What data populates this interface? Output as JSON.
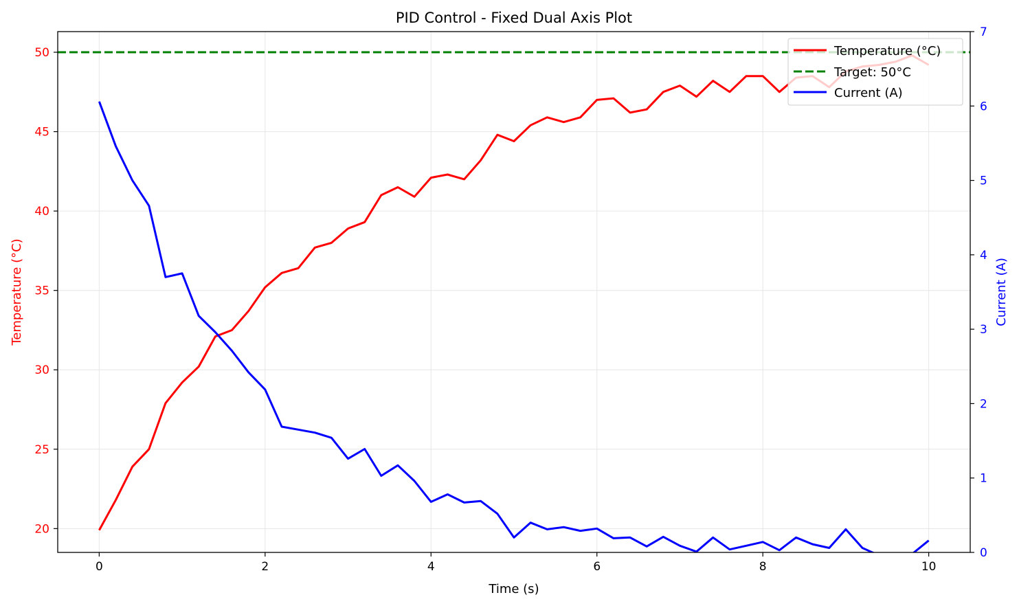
{
  "chart_data": {
    "type": "line",
    "title": "PID Control - Fixed Dual Axis Plot",
    "xlabel": "Time (s)",
    "ylabel": "Temperature (°C)",
    "y2label": "Current (A)",
    "xlim": [
      -0.5,
      10.5
    ],
    "ylim": [
      18.5,
      51.3
    ],
    "y2lim": [
      0,
      7
    ],
    "xticks": [
      0,
      2,
      4,
      6,
      8,
      10
    ],
    "yticks": [
      20,
      25,
      30,
      35,
      40,
      45,
      50
    ],
    "y2ticks": [
      0,
      1,
      2,
      3,
      4,
      5,
      6,
      7
    ],
    "grid": true,
    "legend_position": "upper right",
    "colors": {
      "temperature": "#ff0000",
      "target": "#008000",
      "current": "#0000ff",
      "axis": "#000000",
      "grid": "#e6e6e6"
    },
    "x": [
      0,
      0.2,
      0.4,
      0.6,
      0.8,
      1.0,
      1.2,
      1.4,
      1.6,
      1.8,
      2.0,
      2.2,
      2.4,
      2.6,
      2.8,
      3.0,
      3.2,
      3.4,
      3.6,
      3.8,
      4.0,
      4.2,
      4.4,
      4.6,
      4.8,
      5.0,
      5.2,
      5.4,
      5.6,
      5.8,
      6.0,
      6.2,
      6.4,
      6.6,
      6.8,
      7.0,
      7.2,
      7.4,
      7.6,
      7.8,
      8.0,
      8.2,
      8.4,
      8.6,
      8.8,
      9.0,
      9.2,
      9.4,
      9.6,
      9.8,
      10.0
    ],
    "series": [
      {
        "name": "Temperature (°C)",
        "axis": "left",
        "style": "solid",
        "values": [
          19.9,
          21.8,
          23.9,
          25.0,
          27.9,
          29.2,
          30.2,
          32.1,
          32.5,
          33.7,
          35.2,
          36.1,
          36.4,
          37.7,
          38.0,
          38.9,
          39.3,
          41.0,
          41.5,
          40.9,
          42.1,
          42.3,
          42.0,
          43.2,
          44.8,
          44.4,
          45.4,
          45.9,
          45.6,
          45.9,
          47.0,
          47.1,
          46.2,
          46.4,
          47.5,
          47.9,
          47.2,
          48.2,
          47.5,
          48.5,
          48.5,
          47.5,
          48.4,
          48.5,
          47.8,
          48.8,
          49.1,
          49.2,
          49.4,
          49.8,
          49.2
        ]
      },
      {
        "name": "Target: 50°C",
        "axis": "left",
        "style": "dashed",
        "constant": 50
      },
      {
        "name": "Current (A)",
        "axis": "right",
        "style": "solid",
        "values": [
          6.06,
          5.46,
          5.0,
          4.66,
          3.7,
          3.75,
          3.18,
          2.96,
          2.71,
          2.42,
          2.19,
          1.69,
          1.65,
          1.61,
          1.54,
          1.26,
          1.39,
          1.03,
          1.17,
          0.96,
          0.68,
          0.78,
          0.67,
          0.69,
          0.52,
          0.2,
          0.4,
          0.31,
          0.34,
          0.29,
          0.32,
          0.19,
          0.2,
          0.08,
          0.21,
          0.09,
          0.01,
          0.2,
          0.04,
          0.09,
          0.14,
          0.03,
          0.2,
          0.11,
          0.06,
          0.31,
          0.06,
          -0.04,
          -0.05,
          -0.02,
          0.16
        ]
      }
    ]
  }
}
